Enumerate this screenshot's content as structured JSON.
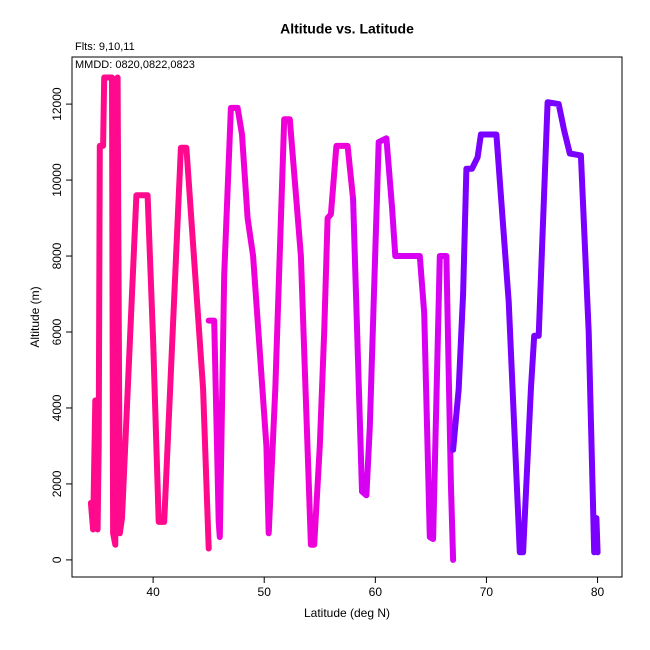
{
  "chart_data": {
    "type": "line",
    "title": "Altitude vs. Latitude",
    "subtitle": "Flts: 9,10,11",
    "annotation": "MMDD: 0820,0822,0823",
    "x_label": "Latitude (deg N)",
    "y_label": "Altitude (m)",
    "xlim": [
      32.7,
      82.2
    ],
    "ylim": [
      -450,
      13240
    ],
    "xticks": [
      40,
      50,
      60,
      70,
      80
    ],
    "yticks": [
      0,
      2000,
      4000,
      6000,
      8000,
      10000,
      12000
    ],
    "grid": false,
    "series": [
      {
        "color": "#ff0a8c",
        "x": [
          34.4,
          34.6,
          34.8,
          35.0,
          35.1,
          35.2,
          35.5,
          35.6,
          36.3,
          36.4,
          36.6,
          36.8,
          37.0,
          37.2,
          38.5,
          39.5,
          40.0,
          40.5,
          41.0,
          42.5,
          43.0,
          44.5,
          45.0
        ],
        "values": [
          1500,
          800,
          4200,
          800,
          3000,
          10900,
          10900,
          12700,
          12700,
          700,
          400,
          12700,
          700,
          1100,
          9600,
          9600,
          5800,
          1000,
          1000,
          10850,
          10850,
          4500,
          300
        ]
      },
      {
        "color": "#f000d8",
        "x": [
          45.0,
          45.5,
          45.9,
          46.0,
          46.4,
          47.0,
          47.6,
          48.0,
          48.5,
          49.0,
          50.2,
          50.4,
          51.0,
          51.8,
          52.3,
          53.3,
          54.2,
          54.5,
          55.0,
          55.4,
          55.7,
          56.0,
          56.5,
          57.5,
          58.0
        ],
        "values": [
          6300,
          6300,
          1000,
          600,
          7500,
          11900,
          11900,
          11200,
          9000,
          8000,
          3000,
          700,
          4500,
          11600,
          11600,
          8000,
          400,
          400,
          3000,
          6000,
          9000,
          9100,
          10900,
          10900,
          9500
        ]
      },
      {
        "color": "#d800f2",
        "x": [
          58.0,
          58.8,
          59.2,
          59.5,
          60.3,
          61.0,
          61.5,
          61.8,
          62.5,
          63.5,
          64.0,
          64.4,
          64.9,
          65.2,
          65.8,
          66.4,
          66.8,
          67.0
        ],
        "values": [
          9500,
          1800,
          1700,
          3500,
          11000,
          11100,
          9300,
          8000,
          8000,
          8000,
          8000,
          6500,
          600,
          550,
          8000,
          8000,
          2000,
          0
        ]
      },
      {
        "color": "#7a00ff",
        "x": [
          67.0,
          67.5,
          67.9,
          68.2,
          68.7,
          69.2,
          69.5,
          70.0,
          70.9,
          72.0,
          73.0,
          73.3,
          74.0,
          74.3,
          74.7,
          75.5,
          76.5,
          77.0,
          77.5,
          78.5,
          79.2,
          79.7,
          79.9,
          80.0
        ],
        "values": [
          2900,
          4500,
          7000,
          10300,
          10300,
          10600,
          11200,
          11200,
          11200,
          6800,
          200,
          200,
          4500,
          5900,
          5900,
          12050,
          12000,
          11300,
          10700,
          10650,
          6000,
          200,
          1100,
          200
        ]
      }
    ]
  }
}
